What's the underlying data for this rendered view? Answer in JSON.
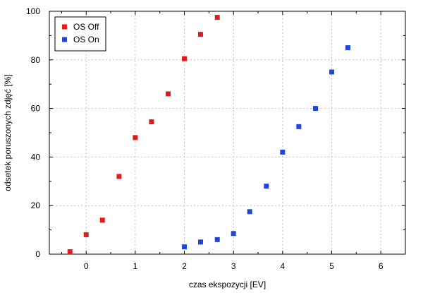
{
  "chart_data": {
    "type": "scatter",
    "xlabel": "czas ekspozycji [EV]",
    "ylabel": "odsetek poruszonych zdjęć [%]",
    "xlim": [
      -0.75,
      6.5
    ],
    "ylim": [
      0,
      100
    ],
    "x_ticks": [
      0,
      1,
      2,
      3,
      4,
      5,
      6
    ],
    "y_ticks": [
      0,
      20,
      40,
      60,
      80,
      100
    ],
    "grid": true,
    "legend_position": "top-left",
    "series": [
      {
        "name": "OS Off",
        "color": "#e41a1c",
        "x": [
          -0.33,
          0,
          0.33,
          0.67,
          1,
          1.33,
          1.67,
          2,
          2.33,
          2.67
        ],
        "y": [
          1,
          8,
          14,
          32,
          48,
          54.5,
          66,
          80.5,
          90.5,
          97.5
        ]
      },
      {
        "name": "OS On",
        "color": "#2146d0",
        "x": [
          2,
          2.33,
          2.67,
          3,
          3.33,
          3.67,
          4,
          4.33,
          4.67,
          5,
          5.33
        ],
        "y": [
          3,
          5,
          6,
          8.5,
          17.5,
          28,
          42,
          52.5,
          60,
          75,
          85
        ]
      }
    ]
  }
}
